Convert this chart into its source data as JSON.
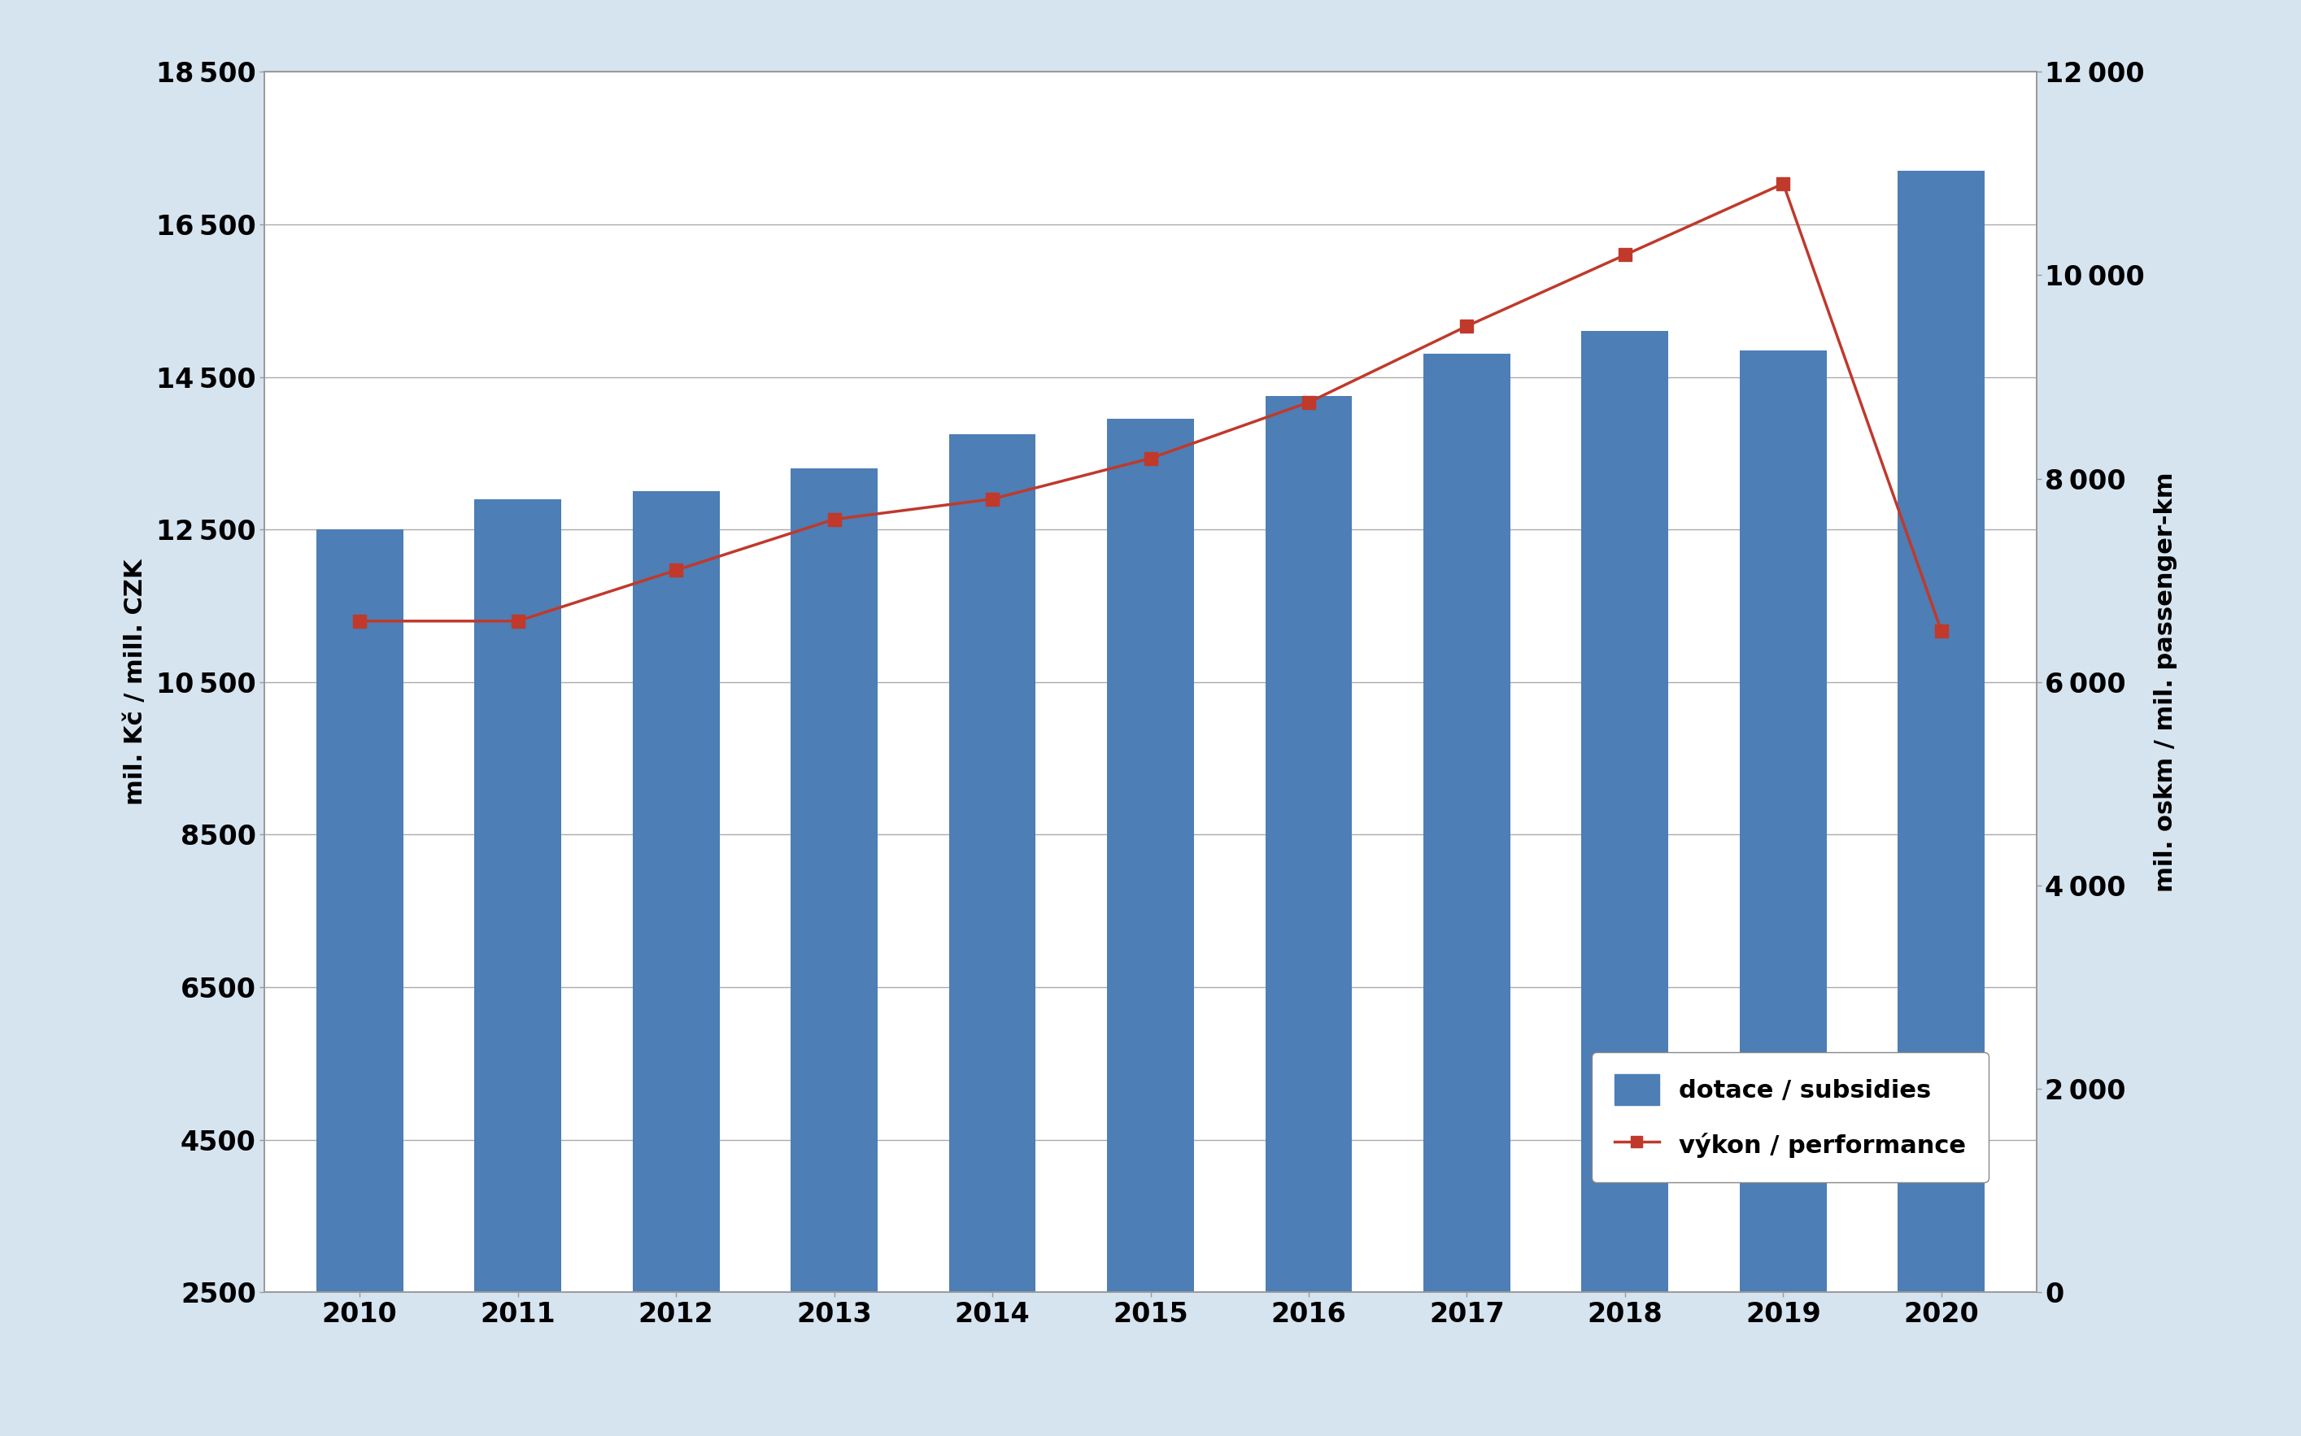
{
  "years": [
    2010,
    2011,
    2012,
    2013,
    2014,
    2015,
    2016,
    2017,
    2018,
    2019,
    2020
  ],
  "subsidies": [
    12500,
    12900,
    13000,
    13300,
    13750,
    13950,
    14250,
    14800,
    15100,
    14850,
    17200
  ],
  "performance": [
    6600,
    6600,
    7100,
    7600,
    7800,
    8200,
    8750,
    9500,
    10200,
    10900,
    6500
  ],
  "bar_color": "#4D7EB5",
  "line_color": "#C0392B",
  "background_color": "#D6E4F0",
  "plot_background": "#FFFFFF",
  "left_ylabel": "mil. Kč / mill. CZK",
  "right_ylabel": "mil. oskm / mil. passenger-km",
  "ylim_left": [
    2500,
    18500
  ],
  "ylim_right": [
    0,
    12000
  ],
  "yticks_left": [
    2500,
    4500,
    6500,
    8500,
    10500,
    12500,
    14500,
    16500,
    18500
  ],
  "yticks_right": [
    0,
    2000,
    4000,
    6000,
    8000,
    10000,
    12000
  ],
  "legend_bar_label": "dotace / subsidies",
  "legend_line_label": "výkon / performance",
  "bar_bottom": 0
}
